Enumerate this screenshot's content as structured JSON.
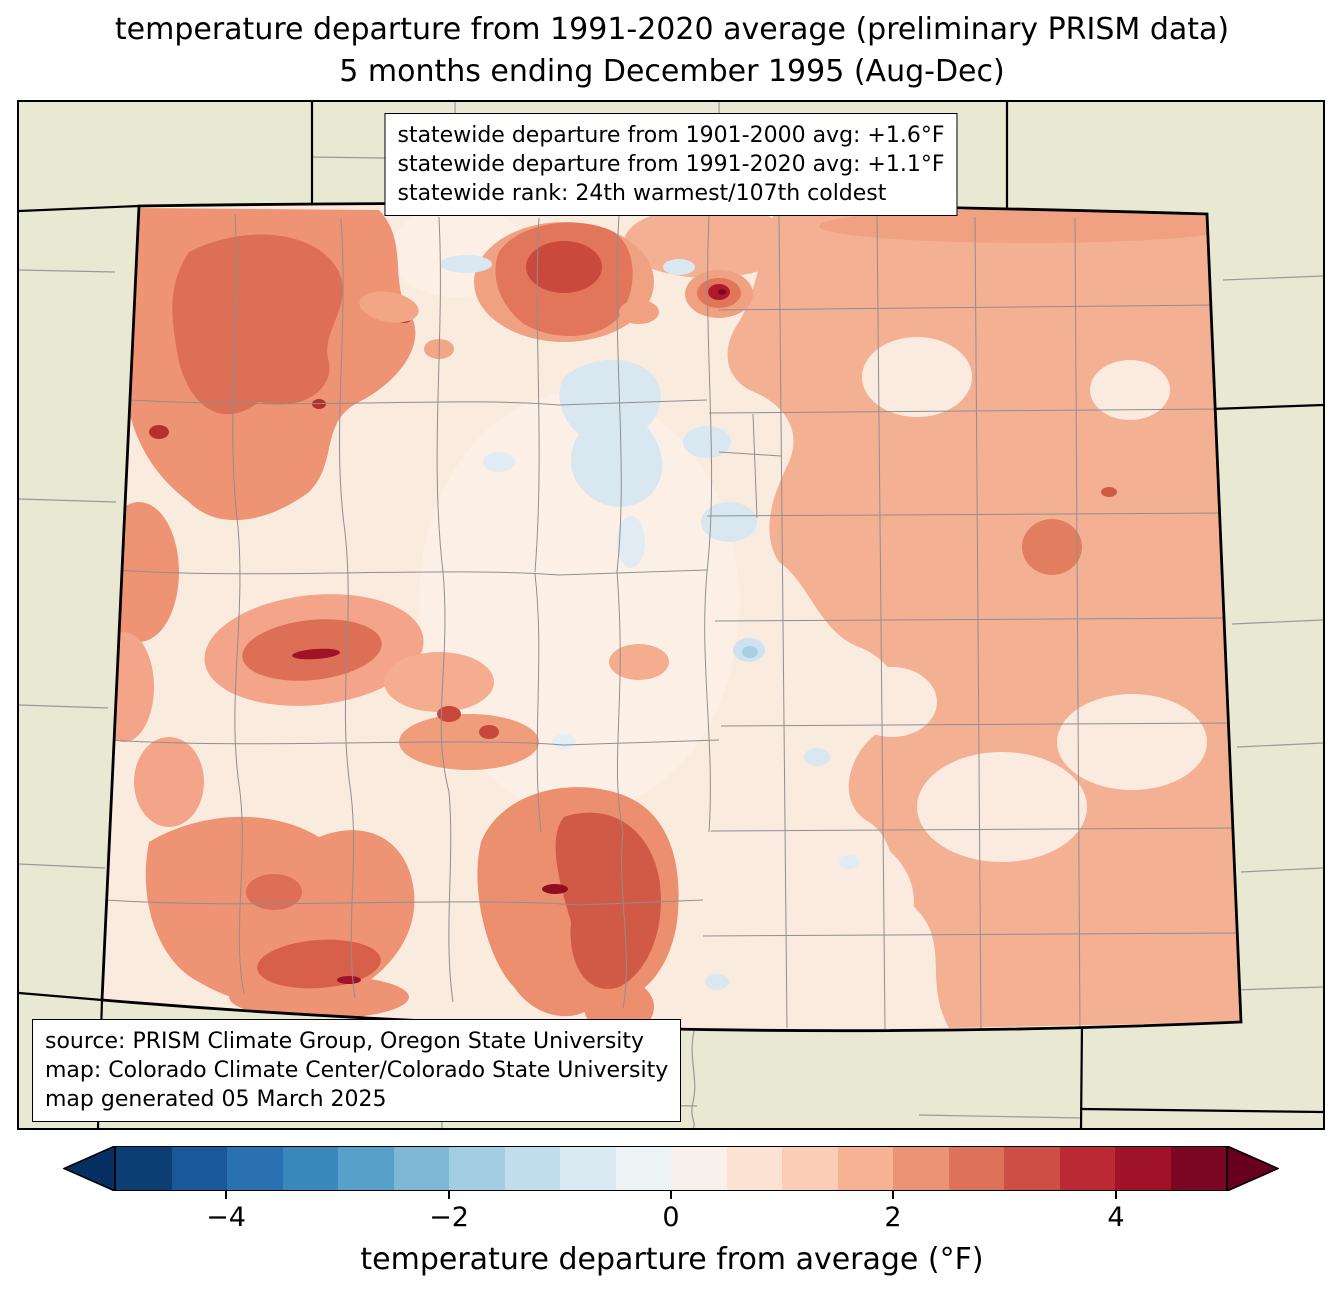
{
  "title": {
    "line1": "temperature departure from 1991-2020 average (preliminary PRISM data)",
    "line2": "5 months ending December 1995 (Aug-Dec)"
  },
  "stats_box": {
    "lines": [
      "statewide departure from 1901-2000 avg: +1.6°F",
      "statewide departure from 1991-2020 avg: +1.1°F",
      "statewide rank: 24th warmest/107th coldest"
    ]
  },
  "source_box": {
    "lines": [
      "source: PRISM Climate Group, Oregon State University",
      "map: Colorado Climate Center/Colorado State University",
      "map generated 05 March 2025"
    ]
  },
  "colorbar": {
    "label": "temperature departure from average (°F)",
    "ticks": [
      "−4",
      "−2",
      "0",
      "2",
      "4"
    ],
    "tick_values": [
      -4,
      -2,
      0,
      2,
      4
    ],
    "range": [
      -5,
      5
    ],
    "step": 0.5,
    "under_color": "#053061",
    "over_color": "#67001f",
    "segment_colors": [
      "#0c3e74",
      "#1a5899",
      "#2a71b2",
      "#3b88bd",
      "#57a0ca",
      "#7eb8d7",
      "#a2cde3",
      "#c1ddec",
      "#dbe9f2",
      "#edf2f5",
      "#f8f0eb",
      "#fbe2d3",
      "#facdb6",
      "#f6b293",
      "#ec9375",
      "#dd715a",
      "#cd4e44",
      "#bb2a33",
      "#9f1228",
      "#7a0622"
    ]
  },
  "map": {
    "region": "Colorado",
    "background_color": "#e9e8d2",
    "state_base_color": "#faebdf",
    "county_line_color": "#8f8f8f",
    "state_border_color": "#000000",
    "neighbor_border_color": "#000000",
    "neighbor_county_color": "#9a9a9a"
  }
}
